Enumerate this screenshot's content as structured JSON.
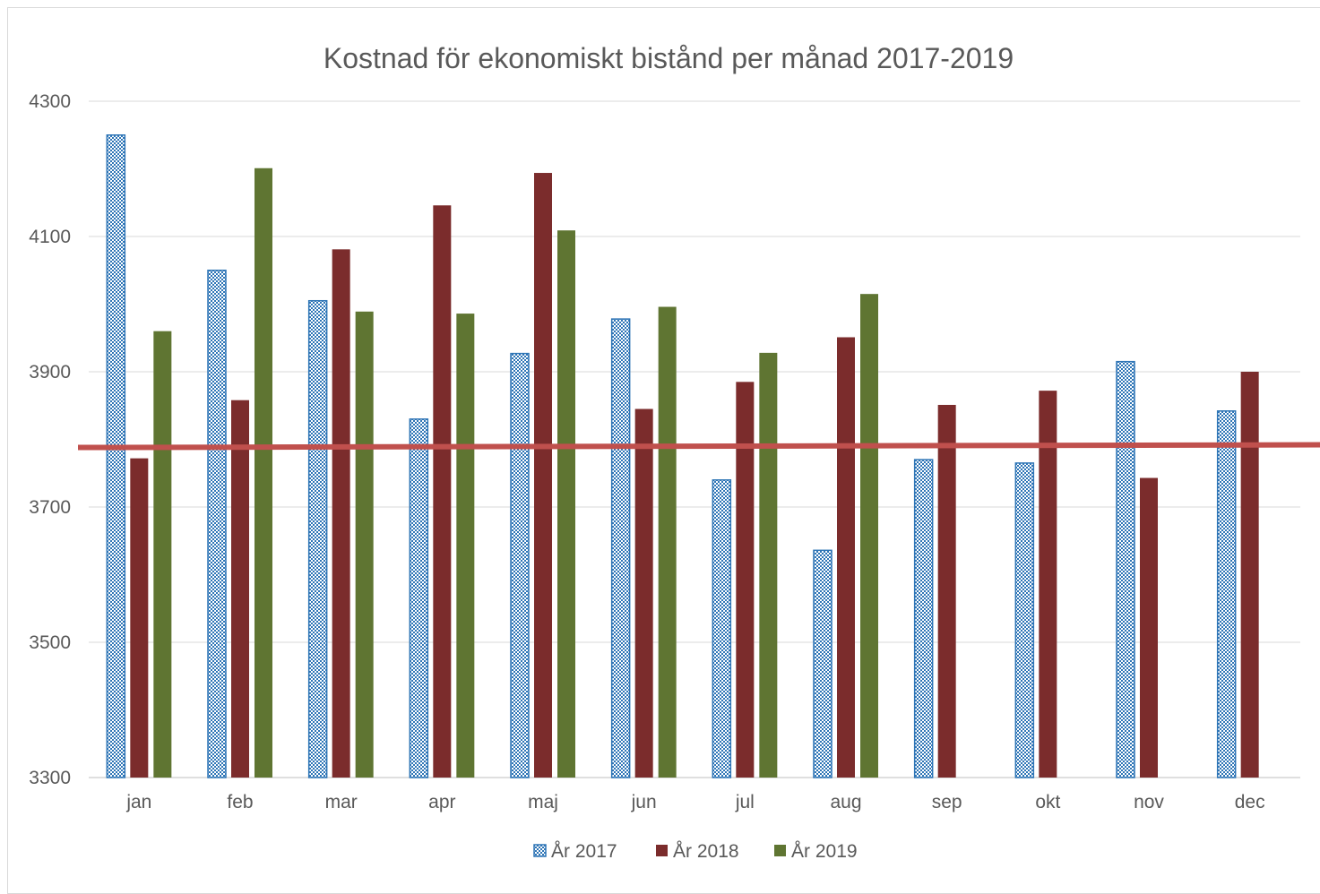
{
  "chart_data": {
    "type": "bar",
    "title": "Kostnad för ekonomiskt bistånd per månad 2017-2019",
    "xlabel": "",
    "ylabel": "",
    "categories": [
      "jan",
      "feb",
      "mar",
      "apr",
      "maj",
      "jun",
      "jul",
      "aug",
      "sep",
      "okt",
      "nov",
      "dec"
    ],
    "ylim": [
      3300,
      4300
    ],
    "yticks": [
      "4300",
      "4100",
      "3900",
      "3700",
      "3500",
      "3300"
    ],
    "grid": true,
    "legend_position": "bottom",
    "series": [
      {
        "name": "År 2017",
        "color": "#2e75b6",
        "pattern": "checkered",
        "values": [
          4250,
          4050,
          4005,
          3830,
          3927,
          3978,
          3740,
          3636,
          3770,
          3765,
          3915,
          3842
        ]
      },
      {
        "name": "År 2018",
        "color": "#7b2c2c",
        "pattern": "solid",
        "values": [
          3772,
          3858,
          4081,
          4146,
          4194,
          3845,
          3885,
          3951,
          3851,
          3872,
          3743,
          3900
        ]
      },
      {
        "name": "År 2019",
        "color": "#5f7532",
        "pattern": "solid",
        "values": [
          3960,
          4201,
          3989,
          3986,
          4109,
          3996,
          3928,
          4015,
          null,
          null,
          null,
          null
        ]
      }
    ],
    "reference_line": {
      "value": 3788,
      "color": "#c0504d"
    }
  }
}
